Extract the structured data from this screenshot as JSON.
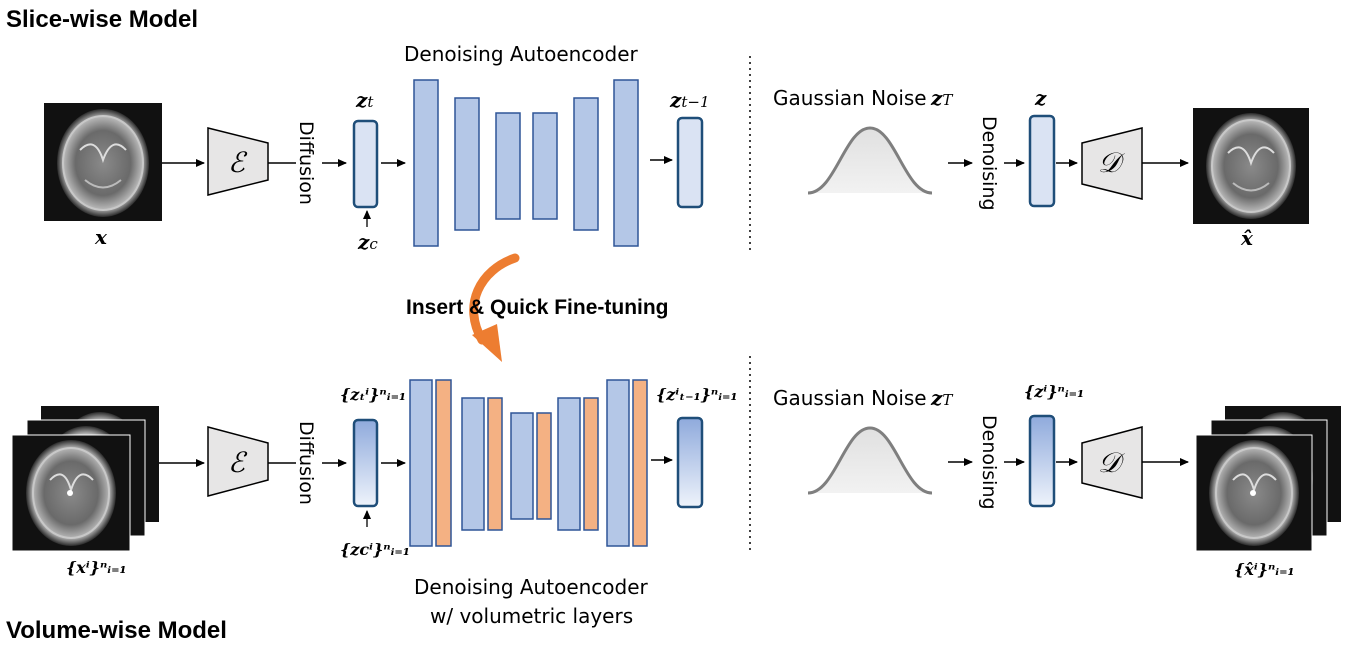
{
  "titles": {
    "slice": "Slice-wise Model",
    "volume": "Volume-wise Model"
  },
  "top": {
    "dae_label": "Denoising Autoencoder",
    "diffusion": "Diffusion",
    "denoising": "Denoising",
    "gaussian_noise": "Gaussian Noise",
    "x": "x",
    "z_t": "z",
    "z_t_sub": "t",
    "z_c": "z",
    "z_c_sub": "c",
    "z_t1": "z",
    "z_t1_sub": "t−1",
    "z_T": "z",
    "z_T_sub": "T",
    "z": "z",
    "x_hat": "x̂",
    "encoder_symbol": "ℰ",
    "decoder_symbol": "𝒟"
  },
  "middle": {
    "callout": "Insert & Quick Fine-tuning"
  },
  "bottom": {
    "dae_label_line1": "Denoising Autoencoder",
    "dae_label_line2": "w/ volumetric layers",
    "diffusion": "Diffusion",
    "denoising": "Denoising",
    "gaussian_noise": "Gaussian Noise",
    "x_set": "{xⁱ}ⁿᵢ₌₁",
    "z_t_set": "{zₜⁱ}ⁿᵢ₌₁",
    "z_c_set": "{zcⁱ}ⁿᵢ₌₁",
    "z_t1_set": "{zⁱₜ₋₁}ⁿᵢ₌₁",
    "z_set": "{zⁱ}ⁿᵢ₌₁",
    "x_hat_set": "{x̂ⁱ}ⁿᵢ₌₁",
    "z_T": "z",
    "z_T_sub": "T",
    "encoder_symbol": "ℰ",
    "decoder_symbol": "𝒟"
  },
  "colors": {
    "blue_block": "#b4c7e7",
    "blue_border": "#2f5597",
    "orange_block": "#f4b183",
    "latent_fill": "#dae3f3",
    "latent_border": "#1f4e79",
    "arrow_orange": "#ed7d31",
    "trapezoid_fill": "#e7e6e6",
    "curve": "#7f7f7f"
  }
}
